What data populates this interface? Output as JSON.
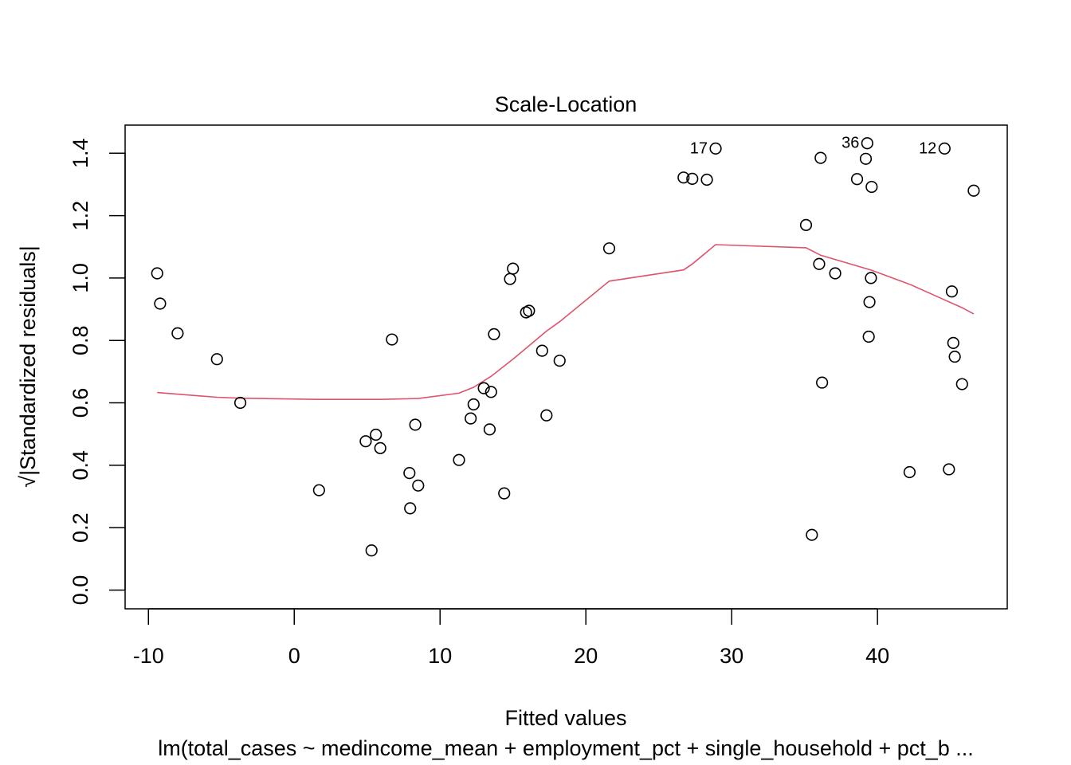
{
  "chart_data": {
    "type": "scatter",
    "title": "Scale-Location",
    "xlabel": "Fitted values",
    "ylabel": "√|Standardized residuals|",
    "caption": "lm(total_cases ~ medincome_mean + employment_pct + single_household + pct_b ...",
    "xlim": [
      -11.6,
      48.9
    ],
    "ylim": [
      -0.06,
      1.49
    ],
    "xticks": [
      -10,
      0,
      10,
      20,
      30,
      40
    ],
    "yticks": [
      0.0,
      0.2,
      0.4,
      0.6,
      0.8,
      1.0,
      1.2,
      1.4
    ],
    "xtick_labels": [
      "-10",
      "0",
      "10",
      "20",
      "30",
      "40"
    ],
    "ytick_labels": [
      "0.0",
      "0.2",
      "0.4",
      "0.6",
      "0.8",
      "1.0",
      "1.2",
      "1.4"
    ],
    "grid": false,
    "legend": "none",
    "points": [
      {
        "x": -9.4,
        "y": 1.015
      },
      {
        "x": -9.2,
        "y": 0.918
      },
      {
        "x": -8.0,
        "y": 0.823
      },
      {
        "x": -5.3,
        "y": 0.74
      },
      {
        "x": -3.7,
        "y": 0.6
      },
      {
        "x": 1.7,
        "y": 0.32
      },
      {
        "x": 4.9,
        "y": 0.477
      },
      {
        "x": 5.3,
        "y": 0.127
      },
      {
        "x": 5.6,
        "y": 0.498
      },
      {
        "x": 5.9,
        "y": 0.455
      },
      {
        "x": 6.7,
        "y": 0.803
      },
      {
        "x": 7.9,
        "y": 0.375
      },
      {
        "x": 7.95,
        "y": 0.262
      },
      {
        "x": 8.3,
        "y": 0.53
      },
      {
        "x": 8.5,
        "y": 0.335
      },
      {
        "x": 11.3,
        "y": 0.417
      },
      {
        "x": 12.1,
        "y": 0.55
      },
      {
        "x": 12.3,
        "y": 0.595
      },
      {
        "x": 13.0,
        "y": 0.647
      },
      {
        "x": 13.4,
        "y": 0.515
      },
      {
        "x": 13.5,
        "y": 0.635
      },
      {
        "x": 13.7,
        "y": 0.82
      },
      {
        "x": 14.4,
        "y": 0.31
      },
      {
        "x": 14.8,
        "y": 0.997
      },
      {
        "x": 15.0,
        "y": 1.03
      },
      {
        "x": 15.9,
        "y": 0.89
      },
      {
        "x": 16.1,
        "y": 0.895
      },
      {
        "x": 17.0,
        "y": 0.767
      },
      {
        "x": 17.3,
        "y": 0.56
      },
      {
        "x": 18.2,
        "y": 0.735
      },
      {
        "x": 21.6,
        "y": 1.095
      },
      {
        "x": 26.7,
        "y": 1.322
      },
      {
        "x": 27.3,
        "y": 1.318
      },
      {
        "x": 28.3,
        "y": 1.315
      },
      {
        "x": 28.9,
        "y": 1.415,
        "label": "17"
      },
      {
        "x": 35.1,
        "y": 1.17
      },
      {
        "x": 35.5,
        "y": 0.177
      },
      {
        "x": 36.0,
        "y": 1.045
      },
      {
        "x": 36.1,
        "y": 1.385
      },
      {
        "x": 36.2,
        "y": 0.665
      },
      {
        "x": 37.1,
        "y": 1.015
      },
      {
        "x": 38.6,
        "y": 1.317
      },
      {
        "x": 39.2,
        "y": 1.382
      },
      {
        "x": 39.3,
        "y": 1.432,
        "label": "36"
      },
      {
        "x": 39.4,
        "y": 0.812
      },
      {
        "x": 39.45,
        "y": 0.923
      },
      {
        "x": 39.55,
        "y": 1.0
      },
      {
        "x": 39.6,
        "y": 1.292
      },
      {
        "x": 42.2,
        "y": 0.378
      },
      {
        "x": 44.6,
        "y": 1.415,
        "label": "12"
      },
      {
        "x": 44.9,
        "y": 0.387
      },
      {
        "x": 45.1,
        "y": 0.957
      },
      {
        "x": 45.2,
        "y": 0.792
      },
      {
        "x": 45.3,
        "y": 0.748
      },
      {
        "x": 45.8,
        "y": 0.66
      },
      {
        "x": 46.6,
        "y": 1.28
      }
    ],
    "smoother": {
      "color": "#DF536B",
      "x": [
        -9.4,
        -5.3,
        -3.7,
        1.7,
        5.9,
        8.5,
        11.3,
        12.3,
        13.5,
        15.0,
        17.3,
        18.2,
        21.6,
        26.7,
        27.3,
        28.9,
        35.1,
        36.1,
        39.6,
        42.2,
        44.6,
        45.8,
        46.6
      ],
      "y": [
        0.633,
        0.618,
        0.615,
        0.611,
        0.611,
        0.614,
        0.631,
        0.65,
        0.685,
        0.74,
        0.83,
        0.86,
        0.99,
        1.026,
        1.045,
        1.107,
        1.097,
        1.073,
        1.025,
        0.98,
        0.93,
        0.905,
        0.885
      ]
    }
  }
}
